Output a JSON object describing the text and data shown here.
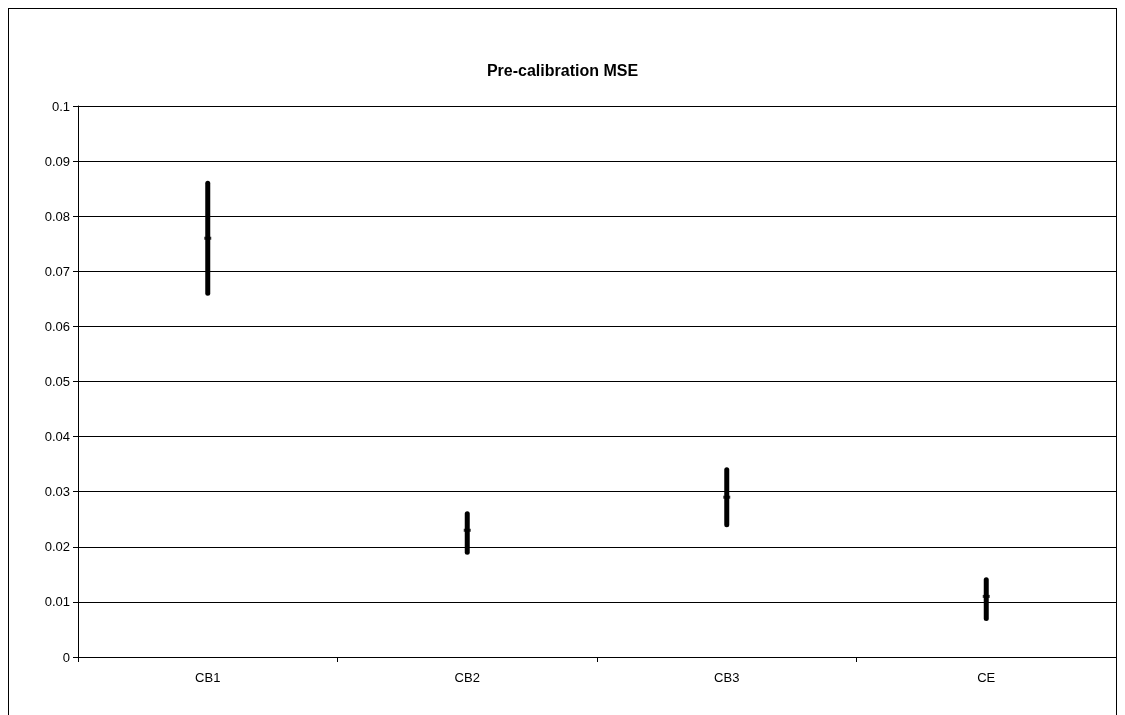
{
  "chart_data": {
    "type": "scatter",
    "title": "Pre-calibration MSE",
    "categories": [
      "CB1",
      "CB2",
      "CB3",
      "CE"
    ],
    "series": [
      {
        "color": "#000000",
        "values": [
          0.076,
          0.023,
          0.029,
          0.011
        ],
        "errors": [
          [
            0.066,
            0.086
          ],
          [
            0.019,
            0.026
          ],
          [
            0.024,
            0.034
          ],
          [
            0.007,
            0.014
          ]
        ]
      }
    ],
    "ylim": [
      0,
      0.1
    ],
    "yticks": [
      0,
      0.01,
      0.02,
      0.03,
      0.04,
      0.05,
      0.06,
      0.07,
      0.08,
      0.09,
      0.1
    ],
    "grid": "y",
    "marker": "square"
  }
}
